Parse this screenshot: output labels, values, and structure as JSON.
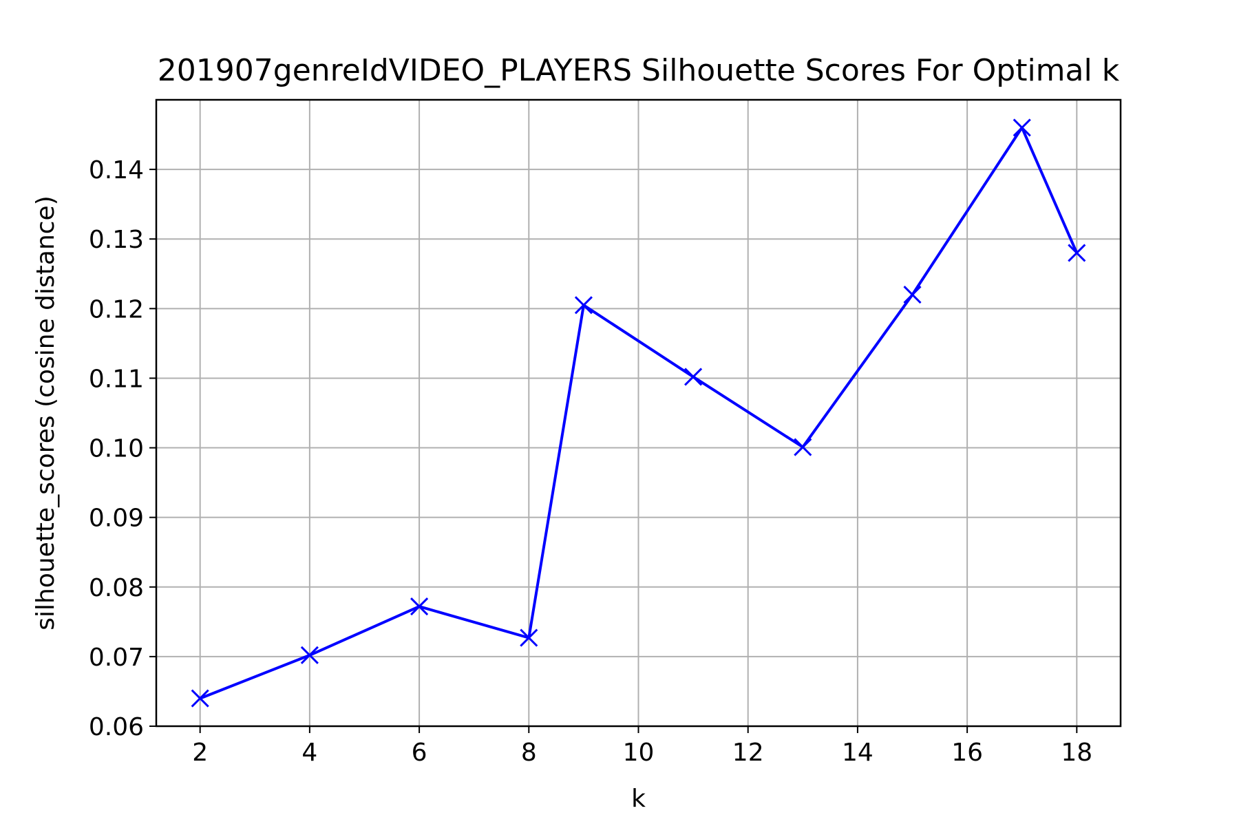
{
  "chart_data": {
    "type": "line",
    "title": "201907genreIdVIDEO_PLAYERS Silhouette Scores For Optimal k",
    "xlabel": "k",
    "ylabel": "silhouette_scores (cosine distance)",
    "xlim": [
      1.2,
      18.8
    ],
    "ylim": [
      0.06,
      0.15
    ],
    "xticks": [
      2,
      4,
      6,
      8,
      10,
      12,
      14,
      16,
      18
    ],
    "yticks": [
      0.06,
      0.07,
      0.08,
      0.09,
      0.1,
      0.11,
      0.12,
      0.13,
      0.14
    ],
    "ytick_labels": [
      "0.06",
      "0.07",
      "0.08",
      "0.09",
      "0.10",
      "0.11",
      "0.12",
      "0.13",
      "0.14"
    ],
    "grid": true,
    "line_color": "#0000ff",
    "marker": "x",
    "series": [
      {
        "x": [
          2,
          4,
          6,
          8,
          9,
          11,
          13,
          15,
          17,
          18
        ],
        "values": [
          0.064,
          0.0702,
          0.0772,
          0.0727,
          0.1205,
          0.1102,
          0.1001,
          0.122,
          0.146,
          0.128
        ]
      }
    ]
  }
}
